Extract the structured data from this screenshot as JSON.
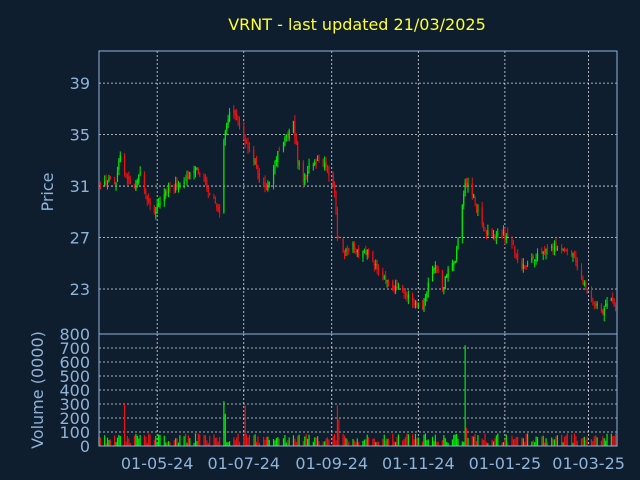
{
  "chart_data": {
    "type": "candlestick",
    "title": "VRNT - last updated 21/03/2025",
    "price_panel": {
      "ylabel": "Price",
      "ylim": [
        19.5,
        41.5
      ],
      "yticks": [
        23,
        27,
        31,
        35,
        39
      ],
      "grid": true
    },
    "volume_panel": {
      "ylabel": "Volume (0000)",
      "ylim": [
        0,
        800
      ],
      "yticks": [
        0,
        100,
        200,
        300,
        400,
        500,
        600,
        700,
        800
      ],
      "grid": true
    },
    "x_axis": {
      "type": "date",
      "range": [
        "2024-03-21",
        "2025-03-21"
      ],
      "tick_labels": [
        "01-05-24",
        "01-07-24",
        "01-09-24",
        "01-11-24",
        "01-01-25",
        "01-03-25"
      ],
      "tick_dates": [
        "2024-05-01",
        "2024-07-01",
        "2024-09-01",
        "2024-11-01",
        "2025-01-01",
        "2025-03-01"
      ]
    },
    "up_color": "#00ee00",
    "down_color": "#ee1111",
    "close_anchors": [
      [
        "2024-03-21",
        30.8
      ],
      [
        "2024-03-28",
        31.5
      ],
      [
        "2024-04-02",
        31.2
      ],
      [
        "2024-04-05",
        33.5
      ],
      [
        "2024-04-10",
        31.5
      ],
      [
        "2024-04-15",
        31.0
      ],
      [
        "2024-04-19",
        32.3
      ],
      [
        "2024-04-24",
        30.0
      ],
      [
        "2024-04-29",
        29.0
      ],
      [
        "2024-05-03",
        29.8
      ],
      [
        "2024-05-08",
        30.6
      ],
      [
        "2024-05-13",
        31.0
      ],
      [
        "2024-05-20",
        31.3
      ],
      [
        "2024-05-28",
        32.5
      ],
      [
        "2024-06-03",
        31.5
      ],
      [
        "2024-06-07",
        30.5
      ],
      [
        "2024-06-12",
        29.5
      ],
      [
        "2024-06-14",
        28.8
      ],
      [
        "2024-06-17",
        34.5
      ],
      [
        "2024-06-21",
        37.0
      ],
      [
        "2024-06-26",
        36.3
      ],
      [
        "2024-07-02",
        34.6
      ],
      [
        "2024-07-08",
        33.0
      ],
      [
        "2024-07-12",
        31.5
      ],
      [
        "2024-07-17",
        30.7
      ],
      [
        "2024-07-22",
        32.5
      ],
      [
        "2024-07-26",
        33.8
      ],
      [
        "2024-08-01",
        35.0
      ],
      [
        "2024-08-05",
        36.0
      ],
      [
        "2024-08-08",
        33.0
      ],
      [
        "2024-08-12",
        31.5
      ],
      [
        "2024-08-16",
        32.5
      ],
      [
        "2024-08-22",
        33.0
      ],
      [
        "2024-08-28",
        32.5
      ],
      [
        "2024-09-03",
        30.5
      ],
      [
        "2024-09-05",
        27.0
      ],
      [
        "2024-09-10",
        25.8
      ],
      [
        "2024-09-16",
        26.5
      ],
      [
        "2024-09-20",
        25.5
      ],
      [
        "2024-09-25",
        26.0
      ],
      [
        "2024-10-01",
        25.0
      ],
      [
        "2024-10-07",
        24.0
      ],
      [
        "2024-10-14",
        23.2
      ],
      [
        "2024-10-21",
        22.8
      ],
      [
        "2024-10-28",
        22.0
      ],
      [
        "2024-11-04",
        21.4
      ],
      [
        "2024-11-08",
        23.5
      ],
      [
        "2024-11-13",
        24.8
      ],
      [
        "2024-11-18",
        23.0
      ],
      [
        "2024-11-22",
        24.5
      ],
      [
        "2024-11-27",
        25.0
      ],
      [
        "2024-12-04",
        31.5
      ],
      [
        "2024-12-09",
        30.5
      ],
      [
        "2024-12-13",
        29.0
      ],
      [
        "2024-12-18",
        27.5
      ],
      [
        "2024-12-23",
        27.0
      ],
      [
        "2024-12-30",
        27.3
      ],
      [
        "2025-01-06",
        26.8
      ],
      [
        "2025-01-10",
        25.0
      ],
      [
        "2025-01-16",
        24.8
      ],
      [
        "2025-01-23",
        25.5
      ],
      [
        "2025-01-30",
        26.0
      ],
      [
        "2025-02-05",
        26.3
      ],
      [
        "2025-02-12",
        26.0
      ],
      [
        "2025-02-18",
        25.8
      ],
      [
        "2025-02-21",
        24.5
      ],
      [
        "2025-02-27",
        23.0
      ],
      [
        "2025-03-05",
        22.0
      ],
      [
        "2025-03-11",
        21.2
      ],
      [
        "2025-03-17",
        22.3
      ],
      [
        "2025-03-21",
        21.6
      ]
    ],
    "volume_spikes": [
      [
        "2024-04-08",
        300
      ],
      [
        "2024-06-17",
        320
      ],
      [
        "2024-06-18",
        230
      ],
      [
        "2024-07-02",
        290
      ],
      [
        "2024-09-05",
        290
      ],
      [
        "2024-09-06",
        190
      ],
      [
        "2024-12-04",
        720
      ],
      [
        "2024-12-05",
        130
      ]
    ],
    "volume_typical_range": [
      20,
      90
    ]
  }
}
